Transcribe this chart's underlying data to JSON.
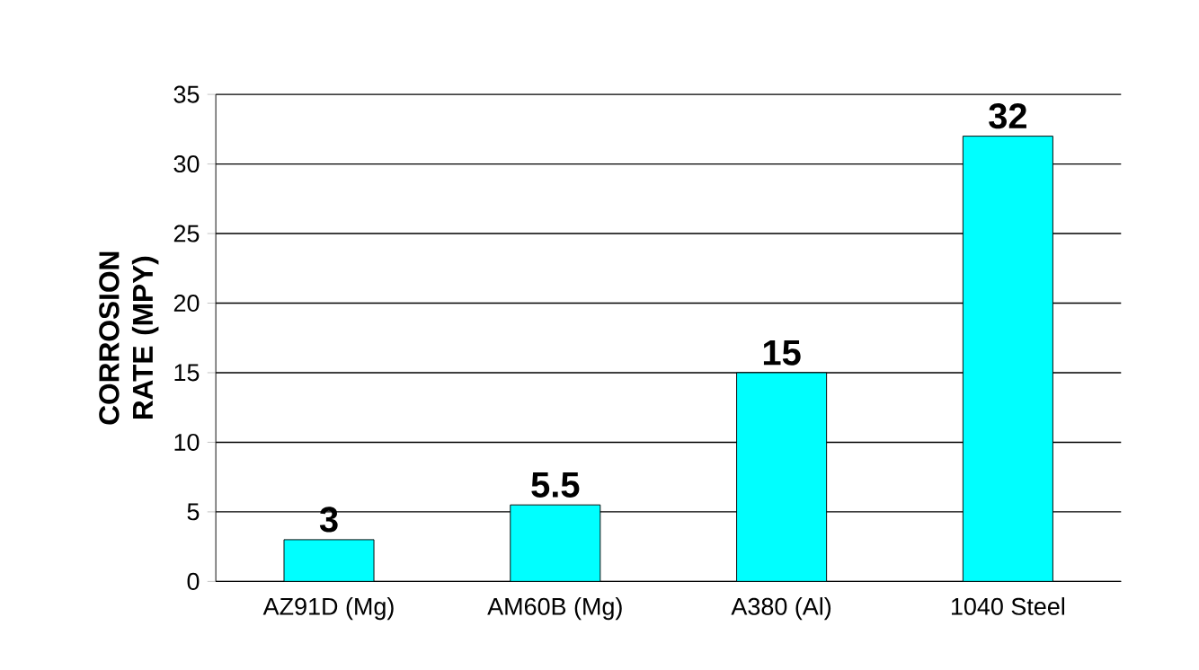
{
  "chart_data": {
    "type": "bar",
    "ylabel": "CORROSION RATE (MPY)",
    "categories": [
      "AZ91D (Mg)",
      "AM60B (Mg)",
      "A380 (Al)",
      "1040 Steel"
    ],
    "values": [
      3,
      5.5,
      15,
      32
    ],
    "color": "#00ffff",
    "ylim": [
      0,
      35
    ],
    "yticks": [
      0,
      5,
      10,
      15,
      20,
      25,
      30,
      35
    ],
    "grid": "y",
    "data_labels": true
  }
}
